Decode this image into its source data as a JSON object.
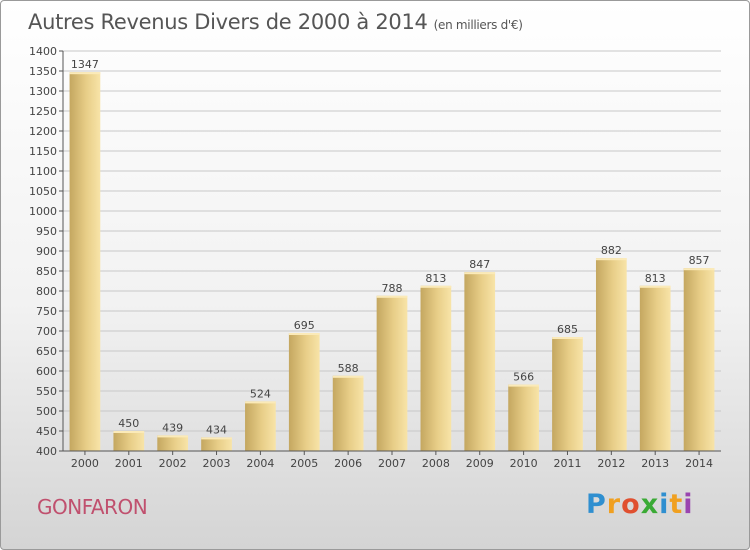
{
  "title": "Autres Revenus Divers de 2000 à 2014",
  "title_unit": "(en milliers d'€)",
  "place": "GONFARON",
  "brand": {
    "letters": [
      "P",
      "r",
      "o",
      "x",
      "i",
      "t",
      "i"
    ]
  },
  "colors": {
    "bar_light": "#f8e3a4",
    "bar_dark": "#c8ab62",
    "grid": "#c8c8c8",
    "place": "#c0506e"
  },
  "chart_data": {
    "type": "bar",
    "title": "Autres Revenus Divers de 2000 à 2014",
    "subtitle": "(en milliers d'€)",
    "categories": [
      "2000",
      "2001",
      "2002",
      "2003",
      "2004",
      "2005",
      "2006",
      "2007",
      "2008",
      "2009",
      "2010",
      "2011",
      "2012",
      "2013",
      "2014"
    ],
    "values": [
      1347,
      450,
      439,
      434,
      524,
      695,
      588,
      788,
      813,
      847,
      566,
      685,
      882,
      813,
      857
    ],
    "ylim": [
      400,
      1400
    ],
    "yticks": [
      400,
      450,
      500,
      550,
      600,
      650,
      700,
      750,
      800,
      850,
      900,
      950,
      1000,
      1050,
      1100,
      1150,
      1200,
      1250,
      1300,
      1350,
      1400
    ],
    "grid": true,
    "xlabel": "",
    "ylabel": ""
  }
}
